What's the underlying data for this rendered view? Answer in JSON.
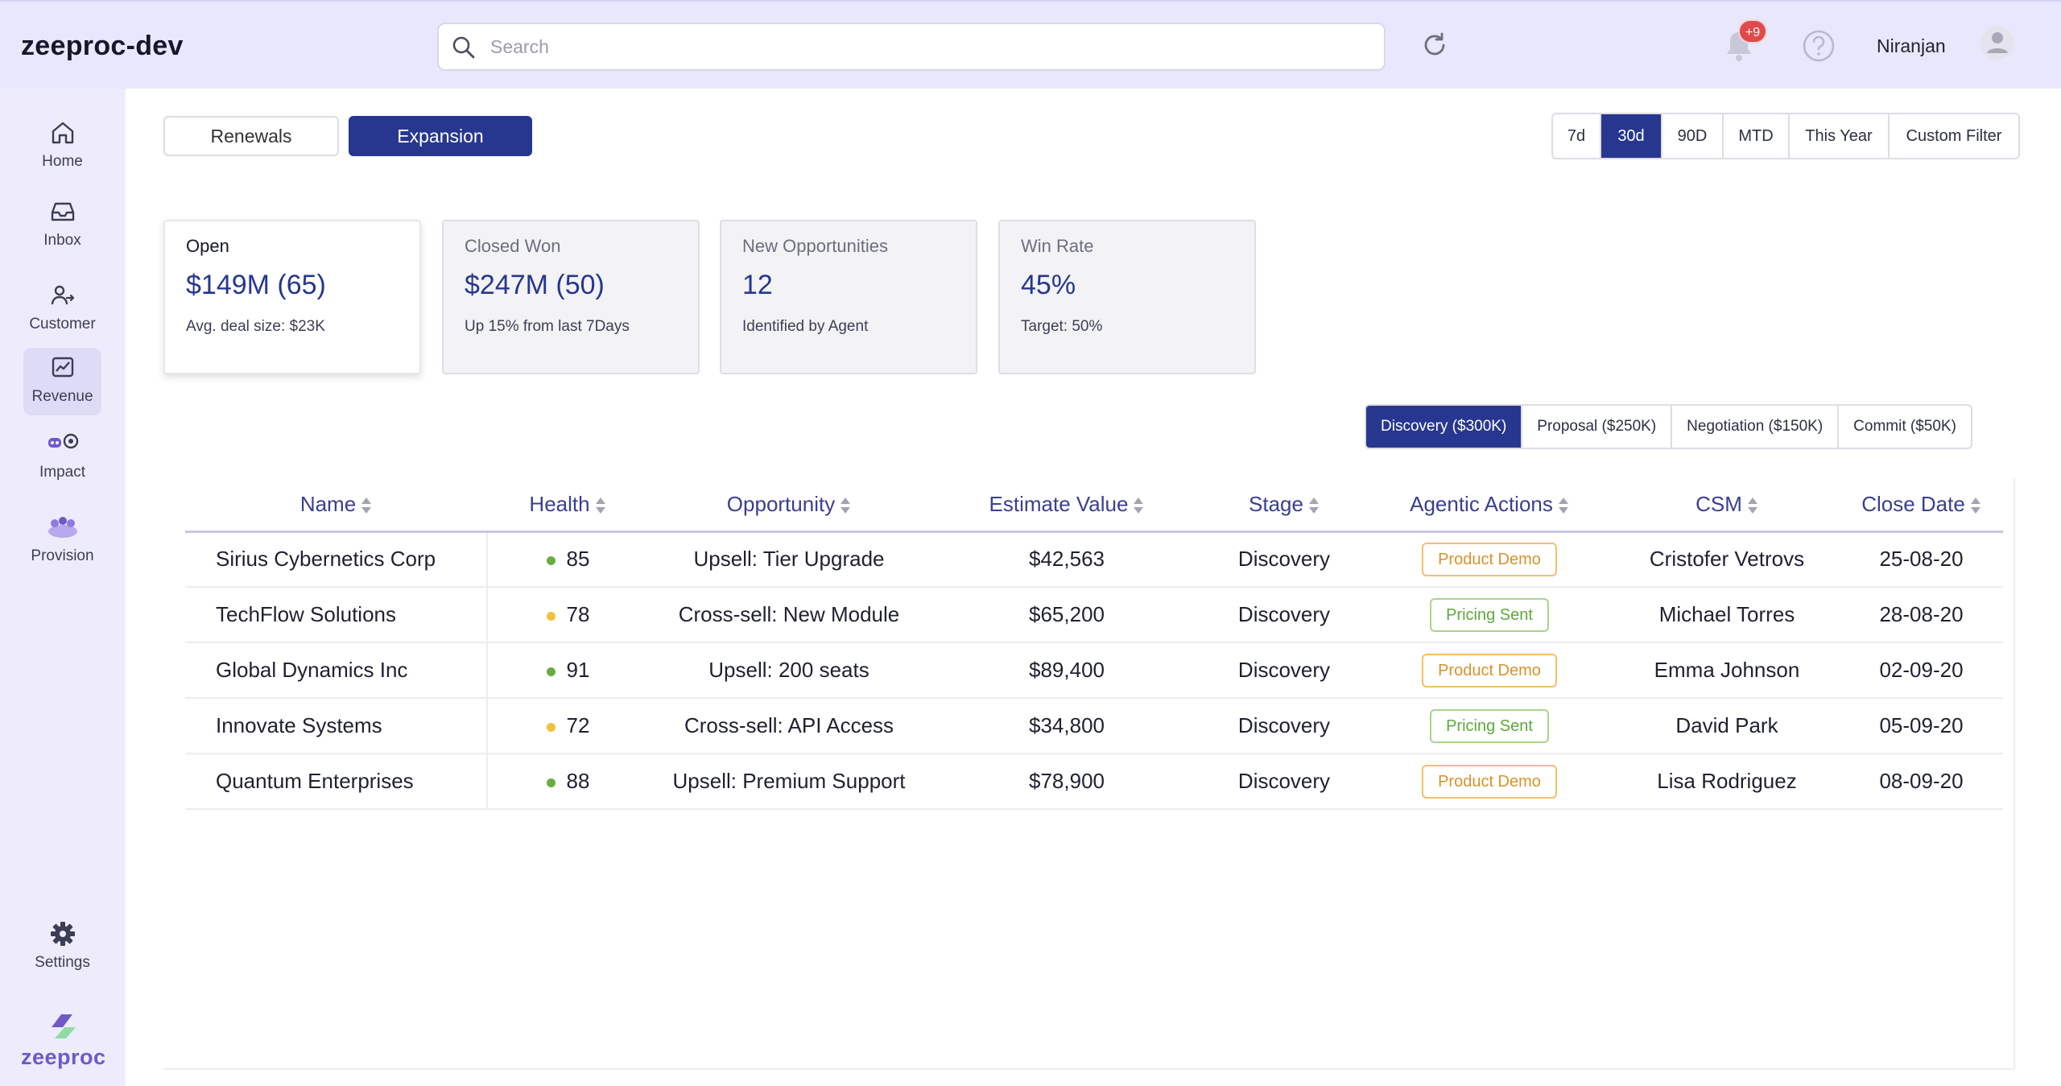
{
  "header": {
    "app_title": "zeeproc-dev",
    "search_placeholder": "Search",
    "notification_count": "+9",
    "username": "Niranjan"
  },
  "sidebar": {
    "items": [
      {
        "label": "Home",
        "icon": "home-icon"
      },
      {
        "label": "Inbox",
        "icon": "inbox-icon"
      },
      {
        "label": "Customer",
        "icon": "customer-icon"
      },
      {
        "label": "Revenue",
        "icon": "revenue-icon",
        "active": true
      },
      {
        "label": "Impact",
        "icon": "impact-icon"
      },
      {
        "label": "Provision",
        "icon": "provision-icon"
      }
    ],
    "settings_label": "Settings",
    "brand": "zeeproc"
  },
  "toggles": {
    "renewals": "Renewals",
    "expansion": "Expansion",
    "active": "Expansion"
  },
  "time_ranges": {
    "options": [
      "7d",
      "30d",
      "90D",
      "MTD",
      "This Year",
      "Custom Filter"
    ],
    "active": "30d"
  },
  "cards": [
    {
      "title": "Open",
      "value": "$149M (65)",
      "sub": "Avg. deal size: $23K"
    },
    {
      "title": "Closed Won",
      "value": "$247M (50)",
      "sub": "Up 15% from last 7Days"
    },
    {
      "title": "New Opportunities",
      "value": "12",
      "sub": "Identified by Agent"
    },
    {
      "title": "Win Rate",
      "value": "45%",
      "sub": "Target: 50%"
    }
  ],
  "stages": {
    "options": [
      "Discovery ($300K)",
      "Proposal ($250K)",
      "Negotiation ($150K)",
      "Commit ($50K)"
    ],
    "active": "Discovery ($300K)"
  },
  "table": {
    "columns": [
      "Name",
      "Health",
      "Opportunity",
      "Estimate Value",
      "Stage",
      "Agentic Actions",
      "CSM",
      "Close Date"
    ],
    "rows": [
      {
        "name": "Sirius Cybernetics Corp",
        "health": "85",
        "health_color": "#6aab43",
        "opportunity": "Upsell: Tier Upgrade",
        "value": "$42,563",
        "stage": "Discovery",
        "action": "Product Demo",
        "csm": "Cristofer Vetrovs",
        "close": "25-08-20"
      },
      {
        "name": "TechFlow Solutions",
        "health": "78",
        "health_color": "#f0c13a",
        "opportunity": "Cross-sell: New Module",
        "value": "$65,200",
        "stage": "Discovery",
        "action": "Pricing Sent",
        "csm": "Michael Torres",
        "close": "28-08-20"
      },
      {
        "name": "Global Dynamics Inc",
        "health": "91",
        "health_color": "#6aab43",
        "opportunity": "Upsell: 200 seats",
        "value": "$89,400",
        "stage": "Discovery",
        "action": "Product Demo",
        "csm": "Emma Johnson",
        "close": "02-09-20"
      },
      {
        "name": "Innovate Systems",
        "health": "72",
        "health_color": "#f0c13a",
        "opportunity": "Cross-sell: API Access",
        "value": "$34,800",
        "stage": "Discovery",
        "action": "Pricing Sent",
        "csm": "David Park",
        "close": "05-09-20"
      },
      {
        "name": "Quantum Enterprises",
        "health": "88",
        "health_color": "#6aab43",
        "opportunity": "Upsell: Premium Support",
        "value": "$78,900",
        "stage": "Discovery",
        "action": "Product Demo",
        "csm": "Lisa Rodriguez",
        "close": "08-09-20"
      }
    ]
  },
  "colors": {
    "accent": "#27378f",
    "header_bg": "#e9e7fb",
    "sidebar_bg": "#eeecfc"
  }
}
